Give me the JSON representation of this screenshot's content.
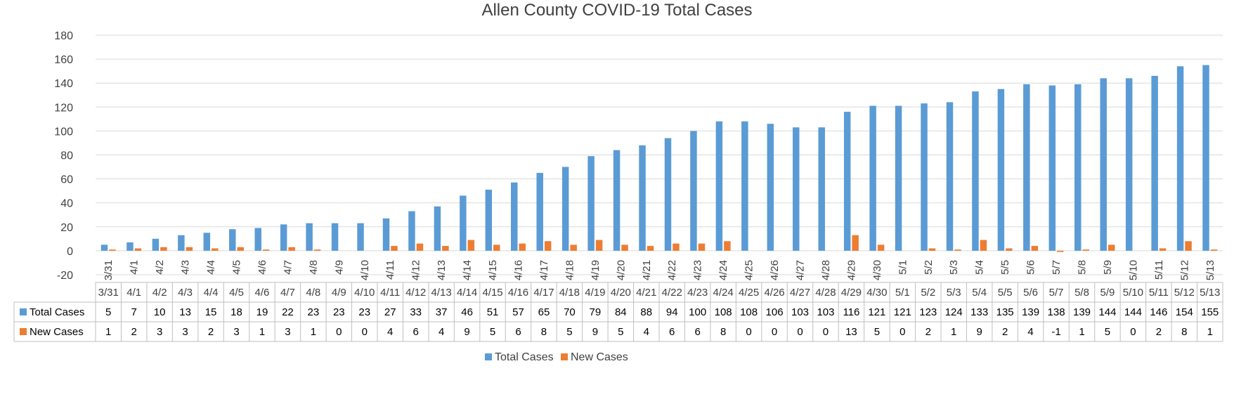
{
  "chart_data": {
    "type": "bar",
    "title": "Allen County COVID-19 Total Cases",
    "xlabel": "",
    "ylabel": "",
    "ylim": [
      -20,
      180
    ],
    "yticks": [
      -20,
      0,
      20,
      40,
      60,
      80,
      100,
      120,
      140,
      160,
      180
    ],
    "grid": true,
    "legend_position": "bottom",
    "categories": [
      "3/31",
      "4/1",
      "4/2",
      "4/3",
      "4/4",
      "4/5",
      "4/6",
      "4/7",
      "4/8",
      "4/9",
      "4/10",
      "4/11",
      "4/12",
      "4/13",
      "4/14",
      "4/15",
      "4/16",
      "4/17",
      "4/18",
      "4/19",
      "4/20",
      "4/21",
      "4/22",
      "4/23",
      "4/24",
      "4/25",
      "4/26",
      "4/27",
      "4/28",
      "4/29",
      "4/30",
      "5/1",
      "5/2",
      "5/3",
      "5/4",
      "5/5",
      "5/6",
      "5/7",
      "5/8",
      "5/9",
      "5/10",
      "5/11",
      "5/12",
      "5/13"
    ],
    "series": [
      {
        "name": "Total Cases",
        "color": "#5B9BD5",
        "values": [
          5,
          7,
          10,
          13,
          15,
          18,
          19,
          22,
          23,
          23,
          23,
          27,
          33,
          37,
          46,
          51,
          57,
          65,
          70,
          79,
          84,
          88,
          94,
          100,
          108,
          108,
          106,
          103,
          103,
          116,
          121,
          121,
          123,
          124,
          133,
          135,
          139,
          138,
          139,
          144,
          144,
          146,
          154,
          155
        ]
      },
      {
        "name": "New Cases",
        "color": "#ED7D31",
        "values": [
          1,
          2,
          3,
          3,
          2,
          3,
          1,
          3,
          1,
          0,
          0,
          4,
          6,
          4,
          9,
          5,
          6,
          8,
          5,
          9,
          5,
          4,
          6,
          6,
          8,
          0,
          0,
          0,
          0,
          13,
          5,
          0,
          2,
          1,
          9,
          2,
          4,
          -1,
          1,
          5,
          0,
          2,
          8,
          1
        ]
      }
    ],
    "data_table": true
  }
}
